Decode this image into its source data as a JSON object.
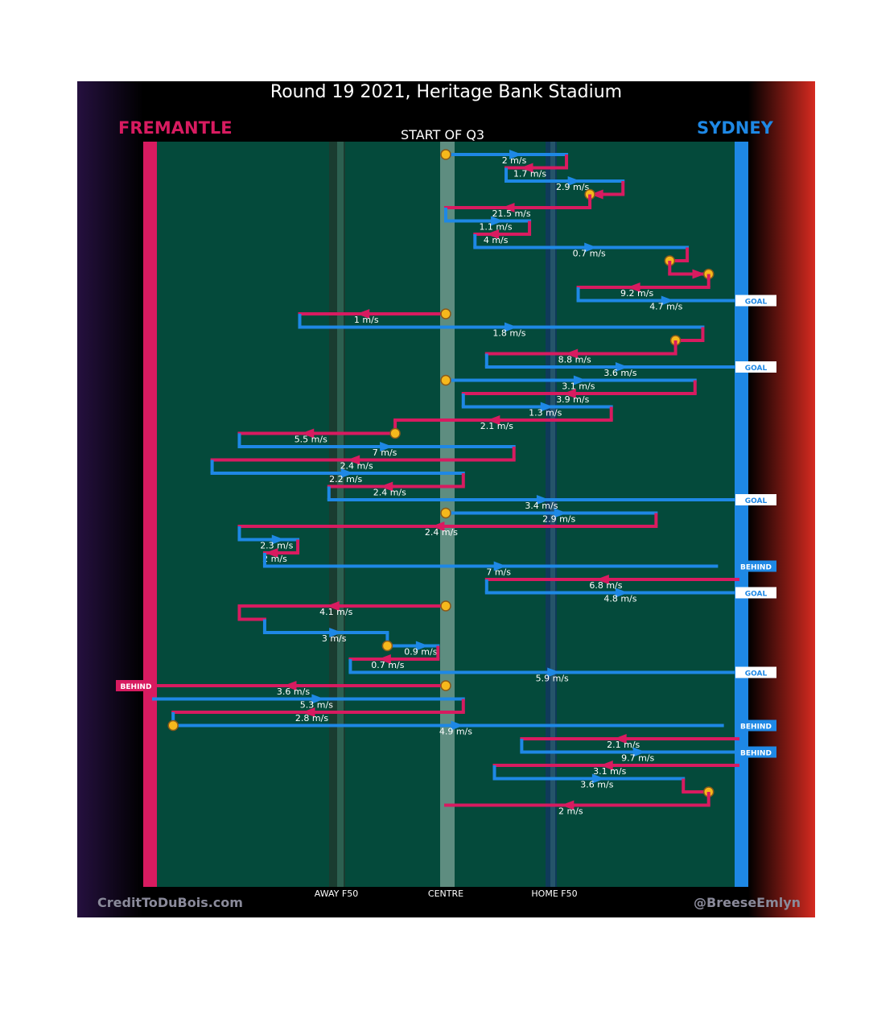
{
  "title": "Round 19 2021, Heritage Bank Stadium",
  "teams": {
    "home": "FREMANTLE",
    "away": "SYDNEY"
  },
  "quarter_label": "START OF Q3",
  "credits": {
    "left": "CreditToDuBois.com",
    "right": "@BreeseEmlyn"
  },
  "colors": {
    "home": "#d81b60",
    "away": "#1e88e5",
    "field": "#044a3b",
    "marker": "#f6b81c"
  },
  "chart_data": {
    "type": "line",
    "title": "Round 19 2021, Heritage Bank Stadium",
    "subtitle": "START OF Q3",
    "xlabel": "",
    "ylabel": "",
    "x_ticks": [
      "AWAY F50",
      "CENTRE",
      "HOME F50"
    ],
    "xlim": [
      -1,
      1
    ],
    "x_tick_values": [
      -0.55,
      0,
      0.55
    ],
    "chains": [
      {
        "team": "away",
        "y": 1,
        "x0": 0,
        "x1": 0.62,
        "speed": "2 m/s",
        "marker_start": true
      },
      {
        "team": "home",
        "y": 2,
        "x0": 0.62,
        "x1": 0.31,
        "speed": "1.7 m/s"
      },
      {
        "team": "away",
        "y": 3,
        "x0": 0.31,
        "x1": 0.91,
        "speed": "2.9 m/s"
      },
      {
        "team": "home",
        "y": 4,
        "x0": 0.91,
        "x1": 0.74,
        "speed": "",
        "marker_end": true
      },
      {
        "team": "home",
        "y": 5,
        "x0": 0.74,
        "x1": 0,
        "speed": "21.5 m/s"
      },
      {
        "team": "away",
        "y": 6,
        "x0": 0,
        "x1": 0.43,
        "speed": "1.1 m/s"
      },
      {
        "team": "home",
        "y": 7,
        "x0": 0.43,
        "x1": 0.15,
        "speed": "4 m/s"
      },
      {
        "team": "away",
        "y": 8,
        "x0": 0.15,
        "x1": 1.24,
        "speed": "0.7 m/s"
      },
      {
        "team": "home",
        "y": 9,
        "x0": 1.24,
        "x1": 1.15,
        "speed": "",
        "marker_end": true
      },
      {
        "team": "home",
        "y": 10,
        "x0": 1.15,
        "x1": 1.35,
        "speed": "",
        "marker_end": true
      },
      {
        "team": "home",
        "y": 11,
        "x0": 1.35,
        "x1": 0.68,
        "speed": "9.2 m/s"
      },
      {
        "team": "away",
        "y": 12,
        "x0": 0.68,
        "x1": 1.5,
        "speed": "4.7 m/s",
        "outcome": "GOAL"
      },
      {
        "team": "home",
        "y": 13,
        "x0": 0,
        "x1": -0.75,
        "speed": "1 m/s",
        "marker_start": true
      },
      {
        "team": "away",
        "y": 14,
        "x0": -0.75,
        "x1": 1.32,
        "speed": "1.8 m/s"
      },
      {
        "team": "home",
        "y": 15,
        "x0": 1.32,
        "x1": 1.18,
        "speed": "",
        "marker_end": true
      },
      {
        "team": "home",
        "y": 16,
        "x0": 1.18,
        "x1": 0.21,
        "speed": "8.8 m/s"
      },
      {
        "team": "away",
        "y": 17,
        "x0": 0.21,
        "x1": 1.5,
        "speed": "3.6 m/s",
        "outcome": "GOAL"
      },
      {
        "team": "away",
        "y": 18,
        "x0": 0,
        "x1": 1.28,
        "speed": "3.1 m/s",
        "marker_start": true
      },
      {
        "team": "home",
        "y": 19,
        "x0": 1.28,
        "x1": 0.09,
        "speed": "3.9 m/s"
      },
      {
        "team": "away",
        "y": 20,
        "x0": 0.09,
        "x1": 0.85,
        "speed": "1.3 m/s"
      },
      {
        "team": "home",
        "y": 21,
        "x0": 0.85,
        "x1": -0.26,
        "speed": "2.1 m/s"
      },
      {
        "team": "home",
        "y": 22,
        "x0": -0.26,
        "x1": -1.06,
        "speed": "5.5 m/s",
        "marker_start": true
      },
      {
        "team": "away",
        "y": 23,
        "x0": -1.06,
        "x1": 0.35,
        "speed": "7 m/s"
      },
      {
        "team": "home",
        "y": 24,
        "x0": 0.35,
        "x1": -1.2,
        "speed": "2.4 m/s"
      },
      {
        "team": "away",
        "y": 25,
        "x0": -1.2,
        "x1": 0.09,
        "speed": "2.2 m/s"
      },
      {
        "team": "home",
        "y": 26,
        "x0": 0.09,
        "x1": -0.6,
        "speed": "2.4 m/s"
      },
      {
        "team": "away",
        "y": 27,
        "x0": -0.6,
        "x1": 1.5,
        "speed": "3.4 m/s",
        "outcome": "GOAL"
      },
      {
        "team": "away",
        "y": 28,
        "x0": 0,
        "x1": 1.08,
        "speed": "2.9 m/s",
        "marker_start": true
      },
      {
        "team": "home",
        "y": 29,
        "x0": 1.08,
        "x1": -1.06,
        "speed": "2.4 m/s"
      },
      {
        "team": "away",
        "y": 30,
        "x0": -1.06,
        "x1": -0.76,
        "speed": "2.3 m/s"
      },
      {
        "team": "home",
        "y": 31,
        "x0": -0.76,
        "x1": -0.93,
        "speed": "2 m/s"
      },
      {
        "team": "away",
        "y": 32,
        "x0": -0.93,
        "x1": 1.39,
        "speed": "7 m/s",
        "outcome": "BEHIND"
      },
      {
        "team": "home",
        "y": 33,
        "x0": 1.5,
        "x1": 0.21,
        "speed": "6.8 m/s"
      },
      {
        "team": "away",
        "y": 34,
        "x0": 0.21,
        "x1": 1.5,
        "speed": "4.8 m/s",
        "outcome": "GOAL"
      },
      {
        "team": "home",
        "y": 35,
        "x0": 0,
        "x1": -1.06,
        "speed": "4.1 m/s",
        "marker_start": true
      },
      {
        "team": "home",
        "y": 36,
        "x0": -1.06,
        "x1": -0.93,
        "speed": ""
      },
      {
        "team": "away",
        "y": 37,
        "x0": -0.93,
        "x1": -0.3,
        "speed": "3 m/s"
      },
      {
        "team": "away",
        "y": 38,
        "x0": -0.3,
        "x1": -0.04,
        "speed": "0.9 m/s",
        "marker_start": true
      },
      {
        "team": "home",
        "y": 39,
        "x0": -0.04,
        "x1": -0.49,
        "speed": "0.7 m/s"
      },
      {
        "team": "away",
        "y": 40,
        "x0": -0.49,
        "x1": 1.5,
        "speed": "5.9 m/s",
        "outcome": "GOAL"
      },
      {
        "team": "home",
        "y": 41,
        "x0": 0,
        "x1": -1.5,
        "speed": "3.6 m/s",
        "marker_start": true,
        "outcome": "BEHIND"
      },
      {
        "team": "away",
        "y": 42,
        "x0": -1.5,
        "x1": 0.09,
        "speed": "5.3 m/s"
      },
      {
        "team": "home",
        "y": 43,
        "x0": 0.09,
        "x1": -1.4,
        "speed": "2.8 m/s"
      },
      {
        "team": "away",
        "y": 44,
        "x0": -1.4,
        "x1": 1.42,
        "speed": "4.9 m/s",
        "marker_start": true,
        "outcome": "BEHIND"
      },
      {
        "team": "home",
        "y": 45,
        "x0": 1.5,
        "x1": 0.39,
        "speed": "2.1 m/s"
      },
      {
        "team": "away",
        "y": 46,
        "x0": 0.39,
        "x1": 1.5,
        "speed": "9.7 m/s",
        "outcome": "BEHIND"
      },
      {
        "team": "home",
        "y": 47,
        "x0": 1.5,
        "x1": 0.25,
        "speed": "3.1 m/s"
      },
      {
        "team": "away",
        "y": 48,
        "x0": 0.25,
        "x1": 1.22,
        "speed": "3.6 m/s"
      },
      {
        "team": "home",
        "y": 49,
        "x0": 1.22,
        "x1": 1.35,
        "speed": "",
        "marker_end": true
      },
      {
        "team": "home",
        "y": 50,
        "x0": 1.35,
        "x1": 0,
        "speed": "2 m/s"
      }
    ]
  }
}
